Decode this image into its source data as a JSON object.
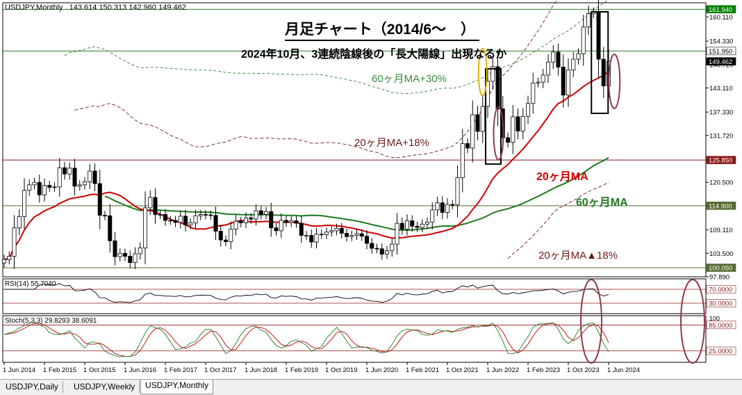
{
  "window": {
    "symbol_info": "USDJPY,Monthly",
    "ohlc_info": "143.614 150.313 142.960 149.462"
  },
  "annotations": {
    "title": "月足チャート（2014/6～　）",
    "subtitle": "2024年10月、3連続陰線後の「長大陽線」出現なるか",
    "ma60_plus30_label": "60ヶ月MA+30%",
    "ma20_plus18_label": "20ヶ月MA+18%",
    "ma20_label": "20ヶ月MA",
    "ma60_label": "60ヶ月MA",
    "ma20_minus18_label": "20ヶ月MA▲18%"
  },
  "indicators": {
    "rsi_label": "RSI(14) 55.7040",
    "stoch_label": "Stoch(5,3,3) 29.8293 38.6091",
    "rsi_levels": [
      "70.0000",
      "30.0000"
    ],
    "stoch_levels": [
      "85.0000",
      "25.0000"
    ],
    "stoch_top_tick": "100"
  },
  "price_levels": [
    {
      "value": "161.940",
      "color": "#008000",
      "text_color": "#ffffff"
    },
    {
      "value": "151.950",
      "color": "#ffffff",
      "text_color": "#000000"
    },
    {
      "value": "149.462",
      "color": "#000000",
      "text_color": "#ffffff"
    },
    {
      "value": "125.850",
      "color": "#8b1a1a",
      "text_color": "#ffffff"
    },
    {
      "value": "114.900",
      "color": "#556b2f",
      "text_color": "#ffffff"
    },
    {
      "value": "100.050",
      "color": "#556b2f",
      "text_color": "#ffffff"
    }
  ],
  "tabs": [
    {
      "label": "USDJPY,Daily",
      "active": false
    },
    {
      "label": "USDJPY,Weekly",
      "active": false
    },
    {
      "label": "USDJPY,Monthly",
      "active": true
    }
  ],
  "chart_data": {
    "type": "candlestick",
    "title": "月足チャート（2014/6～　）",
    "subtitle": "2024年10月、3連続陰線後の「長大陽線」出現なるか",
    "yaxis_ticks": [
      "160.110",
      "154.330",
      "148.720",
      "143.110",
      "137.330",
      "131.720",
      "126.110",
      "120.500",
      "114.890",
      "109.110",
      "103.500",
      "97.890"
    ],
    "xaxis_ticks": [
      "1 Jun 2014",
      "1 Feb 2015",
      "1 Oct 2015",
      "1 Jun 2016",
      "1 Feb 2017",
      "1 Oct 2017",
      "1 Jun 2018",
      "1 Feb 2019",
      "1 Oct 2019",
      "1 Jun 2020",
      "1 Feb 2021",
      "1 Oct 2021",
      "1 Jun 2022",
      "1 Feb 2023",
      "1 Oct 2023",
      "1 Jun 2024"
    ],
    "ylim": [
      97.89,
      163.5
    ],
    "horizontal_lines": [
      161.94,
      151.95,
      125.85,
      114.9,
      100.05
    ],
    "close": [
      102.0,
      102.8,
      109.6,
      112.3,
      118.6,
      119.9,
      120.5,
      117.5,
      119.8,
      119.3,
      119.4,
      124.0,
      122.5,
      123.9,
      119.6,
      119.9,
      120.6,
      123.2,
      120.2,
      112.6,
      112.5,
      106.5,
      102.7,
      103.5,
      102.8,
      101.3,
      103.4,
      104.8,
      114.4,
      116.9,
      112.8,
      112.8,
      111.4,
      111.4,
      110.9,
      112.4,
      110.3,
      110.8,
      112.5,
      112.8,
      112.7,
      112.6,
      108.8,
      106.7,
      106.3,
      109.3,
      111.2,
      110.8,
      112.0,
      111.7,
      113.7,
      112.8,
      113.5,
      109.6,
      108.9,
      111.4,
      110.9,
      111.3,
      110.7,
      107.8,
      107.8,
      106.2,
      108.1,
      108.0,
      108.6,
      108.9,
      109.5,
      108.3,
      107.5,
      107.8,
      108.2,
      107.6,
      105.9,
      104.7,
      104.6,
      103.3,
      104.1,
      105.7,
      110.7,
      109.3,
      111.3,
      110.0,
      109.7,
      110.5,
      111.0,
      113.9,
      115.6,
      113.3,
      115.2,
      115.1,
      121.6,
      129.8,
      128.7,
      136.7,
      132.7,
      138.7,
      144.7,
      148.2,
      138.1,
      131.2,
      130.1,
      136.2,
      132.8,
      136.3,
      139.4,
      144.3,
      144.5,
      146.2,
      149.3,
      151.7,
      148.1,
      141.4,
      147.4,
      150.0,
      151.3,
      157.7,
      160.9,
      161.3,
      150.0,
      143.6,
      149.5
    ],
    "series": [
      {
        "name": "20ヶ月MA",
        "color": "#d00000"
      },
      {
        "name": "60ヶ月MA",
        "color": "#1f7a1f"
      },
      {
        "name": "60ヶ月MA+30%",
        "color": "#2e7d2e"
      },
      {
        "name": "20ヶ月MA+18%",
        "color": "#6b1a1a"
      },
      {
        "name": "20ヶ月MA▲18%",
        "color": "#6b1a1a"
      }
    ],
    "rsi": {
      "name": "RSI(14)",
      "last": 55.704,
      "levels": [
        70,
        30
      ]
    },
    "stoch": {
      "name": "Stoch(5,3,3)",
      "k_last": 29.8293,
      "d_last": 38.6091,
      "levels": [
        85,
        25
      ]
    }
  }
}
